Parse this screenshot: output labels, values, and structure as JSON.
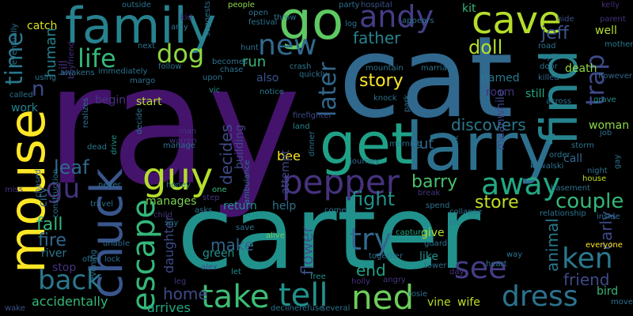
{
  "words": [
    {
      "text": "ray",
      "color": "#44136c"
    },
    {
      "text": "cat",
      "color": "#31688e"
    },
    {
      "text": "carter",
      "color": "#21918c"
    },
    {
      "text": "larry",
      "color": "#2d708e"
    },
    {
      "text": "family",
      "color": "#26828e"
    },
    {
      "text": "mouse",
      "color": "#fde725"
    },
    {
      "text": "chuck",
      "color": "#39568c"
    },
    {
      "text": "find",
      "color": "#26838e"
    },
    {
      "text": "get",
      "color": "#1fa187"
    },
    {
      "text": "go",
      "color": "#5ec962"
    },
    {
      "text": "andy",
      "color": "#433e85"
    },
    {
      "text": "cave",
      "color": "#b5de2b"
    },
    {
      "text": "guy",
      "color": "#b5de2b"
    },
    {
      "text": "pepper",
      "color": "#46327e"
    },
    {
      "text": "escape",
      "color": "#35b779"
    },
    {
      "text": "tell",
      "color": "#21918c"
    },
    {
      "text": "ned",
      "color": "#6ccd5a"
    },
    {
      "text": "take",
      "color": "#3dbc74"
    },
    {
      "text": "dress",
      "color": "#2c728e"
    },
    {
      "text": "see",
      "color": "#433e85"
    },
    {
      "text": "ken",
      "color": "#2a788e"
    },
    {
      "text": "back",
      "color": "#2a788e"
    },
    {
      "text": "try",
      "color": "#31688e"
    },
    {
      "text": "away",
      "color": "#22a884"
    },
    {
      "text": "new",
      "color": "#31688e"
    },
    {
      "text": "time",
      "color": "#2a788e"
    },
    {
      "text": "life",
      "color": "#35b779"
    },
    {
      "text": "dog",
      "color": "#90d743"
    },
    {
      "text": "trap",
      "color": "#3e4a89"
    },
    {
      "text": "later",
      "color": "#31688e"
    },
    {
      "text": "gu",
      "color": "#46327e"
    },
    {
      "text": "n",
      "color": "#3e4a89"
    },
    {
      "text": "couple",
      "color": "#35b779"
    },
    {
      "text": "fight",
      "color": "#21918c"
    },
    {
      "text": "store",
      "color": "#c2df23"
    },
    {
      "text": "barry",
      "color": "#4ac16d"
    },
    {
      "text": "leaf",
      "color": "#31688e"
    },
    {
      "text": "fall",
      "color": "#35b779"
    },
    {
      "text": "fire",
      "color": "#31688e"
    },
    {
      "text": "story",
      "color": "#fde725"
    },
    {
      "text": "doll",
      "color": "#b5de2b"
    },
    {
      "text": "father",
      "color": "#26828e"
    },
    {
      "text": "jeff",
      "color": "#39568c"
    },
    {
      "text": "cut",
      "color": "#31688e"
    },
    {
      "text": "flower",
      "color": "#3b528b"
    },
    {
      "text": "decides",
      "color": "#3e4a89"
    },
    {
      "text": "make",
      "color": "#31688e"
    },
    {
      "text": "home",
      "color": "#3e4a89"
    },
    {
      "text": "end",
      "color": "#1fa187"
    },
    {
      "text": "animal",
      "color": "#2a788e"
    },
    {
      "text": "carly",
      "color": "#3e4a89"
    },
    {
      "text": "friend",
      "color": "#3e4a89"
    },
    {
      "text": "discovers",
      "color": "#2a788e"
    },
    {
      "text": "human",
      "color": "#26828e"
    },
    {
      "text": "run",
      "color": "#35b779"
    },
    {
      "text": "catch",
      "color": "#d8e219"
    },
    {
      "text": "kit",
      "color": "#35b779"
    },
    {
      "text": "well",
      "color": "#b5de2b"
    },
    {
      "text": "death",
      "color": "#90d743"
    },
    {
      "text": "woman",
      "color": "#90d743"
    },
    {
      "text": "call",
      "color": "#31688e"
    },
    {
      "text": "accidentally",
      "color": "#35b779"
    },
    {
      "text": "arrives",
      "color": "#22a884"
    },
    {
      "text": "daughter",
      "color": "#3e4a89"
    },
    {
      "text": "green",
      "color": "#21918c"
    },
    {
      "text": "river",
      "color": "#2a788e"
    },
    {
      "text": "stop",
      "color": "#46327e"
    },
    {
      "text": "city",
      "color": "#31688e"
    },
    {
      "text": "start",
      "color": "#b5de2b"
    },
    {
      "text": "begin",
      "color": "#46327e"
    },
    {
      "text": "also",
      "color": "#3b528b"
    },
    {
      "text": "help",
      "color": "#2c728e"
    },
    {
      "text": "return",
      "color": "#21918c"
    },
    {
      "text": "manages",
      "color": "#7ad151"
    },
    {
      "text": "give",
      "color": "#b5de2b"
    },
    {
      "text": "like",
      "color": "#21918c"
    },
    {
      "text": "bee",
      "color": "#fde725"
    },
    {
      "text": "building",
      "color": "#3e4a89"
    },
    {
      "text": "attempt",
      "color": "#3e4a89"
    },
    {
      "text": "named",
      "color": "#2a788e"
    },
    {
      "text": "room",
      "color": "#46327e"
    },
    {
      "text": "still",
      "color": "#22a884"
    },
    {
      "text": "bird",
      "color": "#35b779"
    },
    {
      "text": "vine",
      "color": "#b5de2b"
    },
    {
      "text": "wife",
      "color": "#c2df23"
    },
    {
      "text": "kill",
      "color": "#46327e"
    },
    {
      "text": "work",
      "color": "#26828e"
    },
    {
      "text": "meanwhile",
      "color": "#3e4a89"
    },
    {
      "text": "hospital",
      "color": "#3b528b"
    },
    {
      "text": "people",
      "color": "#90d743"
    },
    {
      "text": "outside",
      "color": "#2c728e"
    },
    {
      "text": "kelly",
      "color": "#472c7a"
    },
    {
      "text": "hide",
      "color": "#3b528b"
    },
    {
      "text": "parent",
      "color": "#46327e"
    },
    {
      "text": "mother",
      "color": "#2a788e"
    },
    {
      "text": "however",
      "color": "#31688e"
    },
    {
      "text": "grave",
      "color": "#21918c"
    },
    {
      "text": "across",
      "color": "#2c728e"
    },
    {
      "text": "killed",
      "color": "#31688e"
    },
    {
      "text": "knock",
      "color": "#2c728e"
    },
    {
      "text": "notice",
      "color": "#2a788e"
    },
    {
      "text": "crash",
      "color": "#2a788e"
    },
    {
      "text": "hunt",
      "color": "#2c728e"
    },
    {
      "text": "throw",
      "color": "#2c728e"
    },
    {
      "text": "open",
      "color": "#2c728e"
    },
    {
      "text": "vic",
      "color": "#21918c"
    },
    {
      "text": "man",
      "color": "#46327e"
    },
    {
      "text": "warren",
      "color": "#46327e"
    },
    {
      "text": "dead",
      "color": "#2a788e"
    },
    {
      "text": "drive",
      "color": "#21918c"
    },
    {
      "text": "manage",
      "color": "#2c728e"
    },
    {
      "text": "land",
      "color": "#26828e"
    },
    {
      "text": "firefighter",
      "color": "#3e4a89"
    },
    {
      "text": "morning",
      "color": "#2c728e"
    },
    {
      "text": "journey",
      "color": "#31688e"
    },
    {
      "text": "capture",
      "color": "#22a884"
    },
    {
      "text": "hit",
      "color": "#2a788e"
    },
    {
      "text": "guard",
      "color": "#2c728e"
    },
    {
      "text": "alive",
      "color": "#6ccd5a"
    },
    {
      "text": "save",
      "color": "#2c728e"
    },
    {
      "text": "alex",
      "color": "#3e4a89"
    },
    {
      "text": "leg",
      "color": "#46327e"
    },
    {
      "text": "let",
      "color": "#21918c"
    },
    {
      "text": "free",
      "color": "#21918c"
    },
    {
      "text": "holly",
      "color": "#46327e"
    },
    {
      "text": "angry",
      "color": "#46327e"
    },
    {
      "text": "rosie",
      "color": "#2c728e"
    },
    {
      "text": "several",
      "color": "#2c728e"
    },
    {
      "text": "declinerefuse",
      "color": "#2c728e"
    },
    {
      "text": "wake",
      "color": "#3b528b"
    },
    {
      "text": "evening",
      "color": "#2c728e"
    },
    {
      "text": "offer",
      "color": "#2c728e"
    },
    {
      "text": "lock",
      "color": "#2c728e"
    },
    {
      "text": "unable",
      "color": "#31688e"
    },
    {
      "text": "say",
      "color": "#2c728e"
    },
    {
      "text": "child",
      "color": "#46327e"
    },
    {
      "text": "asks",
      "color": "#2c728e"
    },
    {
      "text": "step",
      "color": "#46327e"
    },
    {
      "text": "one",
      "color": "#35b779"
    },
    {
      "text": "honey",
      "color": "#2c728e"
    },
    {
      "text": "travel",
      "color": "#2c728e"
    },
    {
      "text": "never",
      "color": "#2c728e"
    },
    {
      "text": "chased",
      "color": "#31688e"
    },
    {
      "text": "miss",
      "color": "#46327e"
    },
    {
      "text": "construction",
      "color": "#2c728e"
    },
    {
      "text": "called",
      "color": "#2c728e"
    },
    {
      "text": "using",
      "color": "#2c728e"
    },
    {
      "text": "eventually",
      "color": "#2c728e"
    },
    {
      "text": "boyfriend",
      "color": "#46327e"
    },
    {
      "text": "awakens",
      "color": "#2c728e"
    },
    {
      "text": "immediately",
      "color": "#2c728e"
    },
    {
      "text": "margo",
      "color": "#2c728e"
    },
    {
      "text": "follow",
      "color": "#2c728e"
    },
    {
      "text": "next",
      "color": "#2c728e"
    },
    {
      "text": "upon",
      "color": "#2c728e"
    },
    {
      "text": "becomes",
      "color": "#2c728e"
    },
    {
      "text": "chase",
      "color": "#2c728e"
    },
    {
      "text": "suggests",
      "color": "#2c728e"
    },
    {
      "text": "amy",
      "color": "#2c728e"
    },
    {
      "text": "kid",
      "color": "#46327e"
    },
    {
      "text": "festival",
      "color": "#2c728e"
    },
    {
      "text": "quickly",
      "color": "#2c728e"
    },
    {
      "text": "party",
      "color": "#2c728e"
    },
    {
      "text": "log",
      "color": "#2c728e"
    },
    {
      "text": "appears",
      "color": "#2c728e"
    },
    {
      "text": "mountain",
      "color": "#2c728e"
    },
    {
      "text": "marriage",
      "color": "#2c728e"
    },
    {
      "text": "road",
      "color": "#2c728e"
    },
    {
      "text": "split",
      "color": "#2c728e"
    },
    {
      "text": "door",
      "color": "#2c728e"
    },
    {
      "text": "order",
      "color": "#2c728e"
    },
    {
      "text": "kowalski",
      "color": "#2c728e"
    },
    {
      "text": "storm",
      "color": "#2c728e"
    },
    {
      "text": "job",
      "color": "#2c728e"
    },
    {
      "text": "night",
      "color": "#2c728e"
    },
    {
      "text": "house",
      "color": "#c2df23"
    },
    {
      "text": "gay",
      "color": "#2c728e"
    },
    {
      "text": "basement",
      "color": "#2c728e"
    },
    {
      "text": "relationship",
      "color": "#2c728e"
    },
    {
      "text": "inside",
      "color": "#2c728e"
    },
    {
      "text": "everyone",
      "color": "#fde725"
    },
    {
      "text": "heart",
      "color": "#2c728e"
    },
    {
      "text": "way",
      "color": "#2c728e"
    },
    {
      "text": "tower",
      "color": "#2c728e"
    },
    {
      "text": "day",
      "color": "#46327e"
    },
    {
      "text": "together",
      "color": "#2c728e"
    },
    {
      "text": "come",
      "color": "#2c728e"
    },
    {
      "text": "spend",
      "color": "#2c728e"
    },
    {
      "text": "collapse",
      "color": "#2c728e"
    },
    {
      "text": "break",
      "color": "#46327e"
    },
    {
      "text": "talk",
      "color": "#2c728e"
    },
    {
      "text": "realizes",
      "color": "#2c728e"
    },
    {
      "text": "decide",
      "color": "#2c728e"
    },
    {
      "text": "ambulance",
      "color": "#2c728e"
    },
    {
      "text": "park",
      "color": "#2c728e"
    },
    {
      "text": "dinner",
      "color": "#2c728e"
    },
    {
      "text": "move",
      "color": "#2c728e"
    }
  ]
}
